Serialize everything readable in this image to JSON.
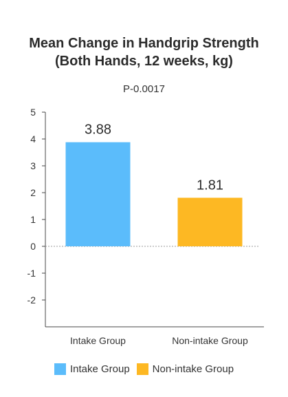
{
  "chart_data": {
    "type": "bar",
    "title_lines": [
      "Mean Change in Handgrip Strength",
      "(Both Hands, 12 weeks, kg)"
    ],
    "subtitle": "P-0.0017",
    "categories": [
      "Intake Group",
      "Non-intake Group"
    ],
    "values": [
      3.88,
      1.81
    ],
    "value_labels": [
      "3.88",
      "1.81"
    ],
    "ylim": [
      -3,
      5
    ],
    "yticks": [
      5,
      4,
      3,
      2,
      1,
      0,
      -1,
      -2
    ],
    "zero_line": "dotted",
    "grid": false,
    "legend": {
      "placement": "bottom",
      "items": [
        {
          "label": "Intake Group",
          "color": "#5bbcfb"
        },
        {
          "label": "Non-intake Group",
          "color": "#fdb823"
        }
      ]
    },
    "colors": [
      "#5bbcfb",
      "#fdb823"
    ]
  }
}
